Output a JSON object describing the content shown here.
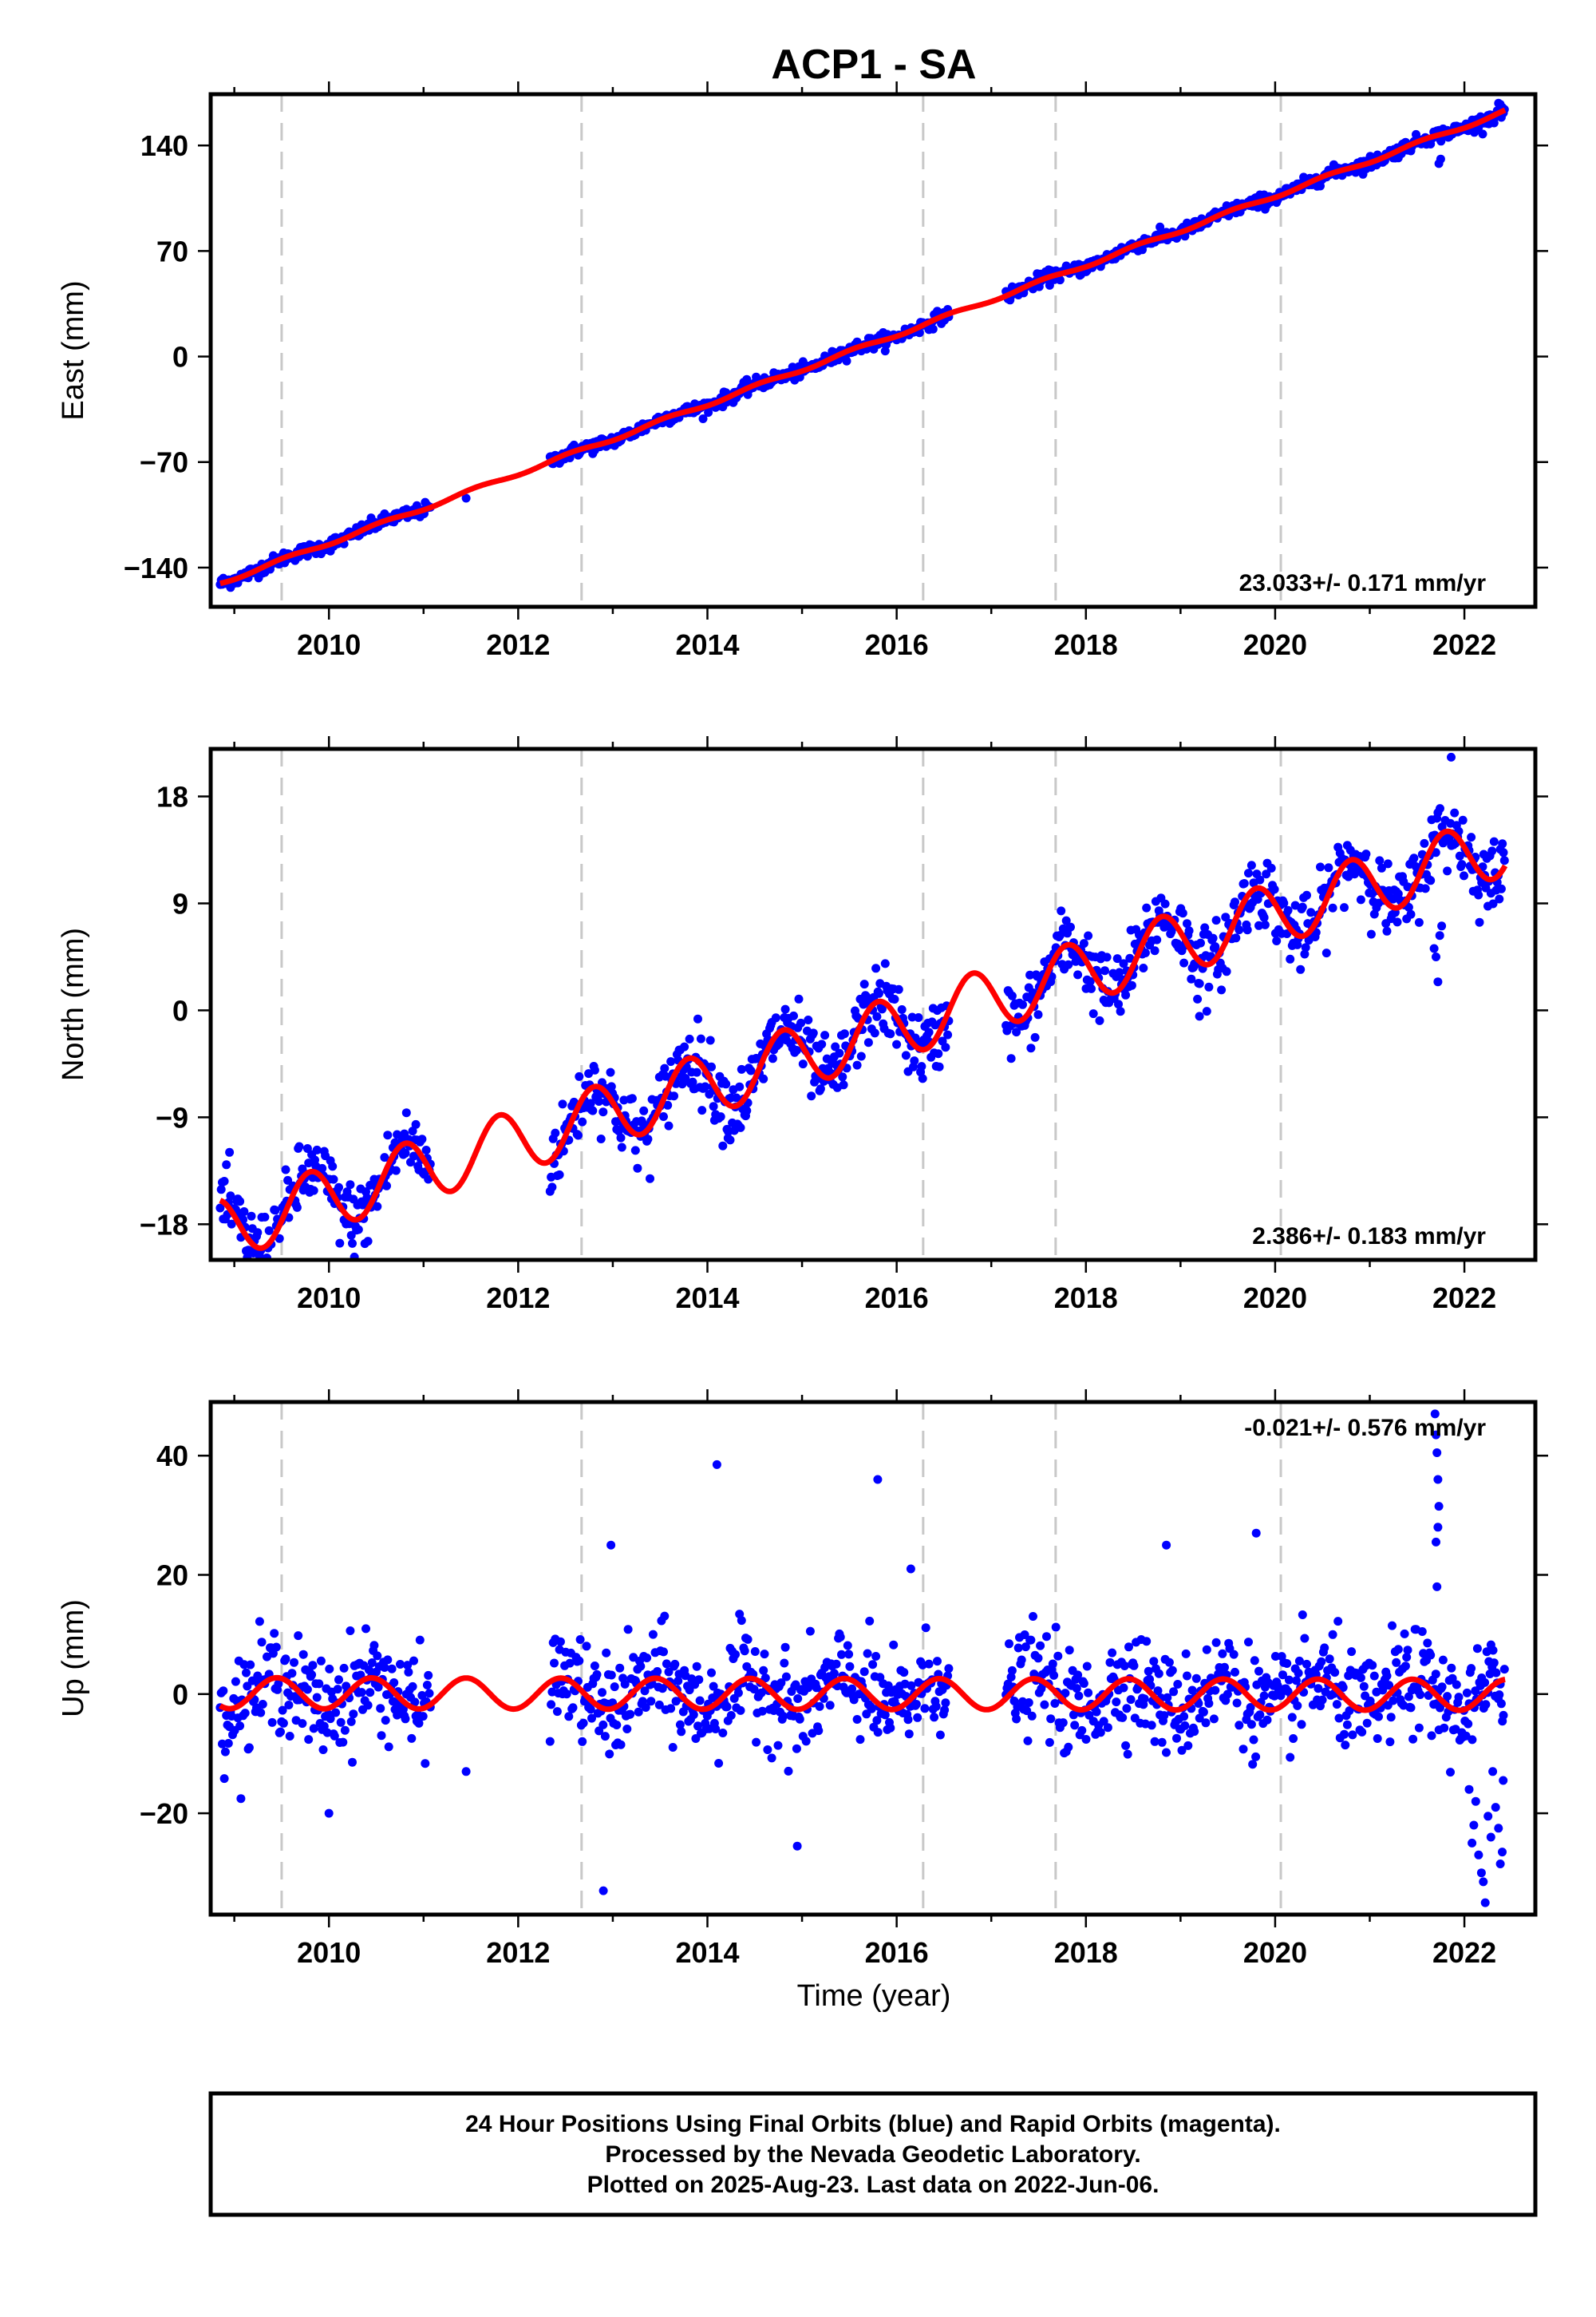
{
  "chart_data": {
    "type": "scatter",
    "title": "ACP1 - SA",
    "xlabel": "Time (year)",
    "xlim": [
      2008.75,
      2022.75
    ],
    "x_ticks": [
      2010,
      2012,
      2014,
      2016,
      2018,
      2020,
      2022
    ],
    "vertical_markers": [
      2009.5,
      2012.67,
      2016.28,
      2017.68,
      2020.06
    ],
    "colors": {
      "points": "#0000ff",
      "fit": "#ff0000",
      "markers": "#c8c8c8"
    },
    "data_range": {
      "start": 2008.85,
      "end": 2022.43
    },
    "gaps": [
      [
        2011.08,
        2012.33
      ],
      [
        2016.55,
        2017.15
      ]
    ],
    "panels": [
      {
        "name": "east",
        "ylabel": "East (mm)",
        "ylim": [
          -166,
          174
        ],
        "y_ticks": [
          -140,
          -70,
          0,
          70,
          140
        ],
        "rate_text": "23.033+/- 0.171 mm/yr",
        "fit": {
          "ref_year": 2016.0,
          "offset": 14.5,
          "rate": 23.033,
          "annual_amp": 1.2,
          "annual_phase": 0.3
        },
        "noise_sd": 2.2,
        "outliers": [
          {
            "x": 2021.73,
            "y": 128.0
          },
          {
            "x": 2021.75,
            "y": 131.0
          },
          {
            "x": 2011.45,
            "y": -94.0
          },
          {
            "x": 2022.36,
            "y": 168.0
          }
        ]
      },
      {
        "name": "north",
        "ylabel": "North (mm)",
        "ylim": [
          -21,
          22
        ],
        "y_ticks": [
          -18,
          -9,
          0,
          9,
          18
        ],
        "rate_text": "2.386+/- 0.183 mm/yr",
        "fit": {
          "ref_year": 2016.0,
          "offset": -1.4,
          "rate": 2.386,
          "annual_amp": 2.6,
          "annual_phase": 0.55
        },
        "noise_sd": 1.5,
        "outliers": [
          {
            "x": 2021.72,
            "y": 2.4
          },
          {
            "x": 2021.7,
            "y": 4.5
          },
          {
            "x": 2021.68,
            "y": 5.2
          },
          {
            "x": 2021.74,
            "y": 6.3
          },
          {
            "x": 2021.76,
            "y": 7.1
          },
          {
            "x": 2019.2,
            "y": -0.5
          },
          {
            "x": 2014.22,
            "y": -10.2
          },
          {
            "x": 2021.86,
            "y": 21.3
          }
        ]
      },
      {
        "name": "up",
        "ylabel": "Up (mm)",
        "ylim": [
          -37,
          49
        ],
        "y_ticks": [
          -20,
          0,
          20,
          40
        ],
        "rate_text": "-0.021+/- 0.576 mm/yr",
        "fit": {
          "ref_year": 2016.0,
          "offset": 0.0,
          "rate": -0.021,
          "annual_amp": 2.6,
          "annual_phase": 0.2
        },
        "noise_sd": 4.2,
        "outliers": [
          {
            "x": 2014.1,
            "y": 38.5
          },
          {
            "x": 2015.8,
            "y": 36.0
          },
          {
            "x": 2012.9,
            "y": -33.0
          },
          {
            "x": 2014.95,
            "y": -25.5
          },
          {
            "x": 2012.98,
            "y": 25.0
          },
          {
            "x": 2010.0,
            "y": -20.0
          },
          {
            "x": 2016.15,
            "y": 21.0
          },
          {
            "x": 2018.85,
            "y": 25.0
          },
          {
            "x": 2019.8,
            "y": 27.0
          },
          {
            "x": 2011.45,
            "y": -13.0
          },
          {
            "x": 2021.69,
            "y": 47.0
          },
          {
            "x": 2021.7,
            "y": 43.5
          },
          {
            "x": 2021.71,
            "y": 40.5
          },
          {
            "x": 2021.72,
            "y": 36.0
          },
          {
            "x": 2021.73,
            "y": 31.5
          },
          {
            "x": 2021.72,
            "y": 28.0
          },
          {
            "x": 2021.7,
            "y": 25.5
          },
          {
            "x": 2021.71,
            "y": 18.0
          },
          {
            "x": 2022.05,
            "y": -16.0
          },
          {
            "x": 2022.1,
            "y": -22.0
          },
          {
            "x": 2022.15,
            "y": -27.0
          },
          {
            "x": 2022.2,
            "y": -31.5
          },
          {
            "x": 2022.22,
            "y": -35.0
          },
          {
            "x": 2022.28,
            "y": -24.0
          },
          {
            "x": 2022.33,
            "y": -19.0
          },
          {
            "x": 2022.38,
            "y": -28.5
          },
          {
            "x": 2022.41,
            "y": -14.5
          },
          {
            "x": 2022.12,
            "y": -18.0
          },
          {
            "x": 2022.25,
            "y": -20.5
          },
          {
            "x": 2022.3,
            "y": -13.0
          },
          {
            "x": 2022.36,
            "y": -22.5
          },
          {
            "x": 2022.08,
            "y": -25.0
          },
          {
            "x": 2022.18,
            "y": -30.0
          },
          {
            "x": 2022.4,
            "y": -26.5
          }
        ]
      }
    ]
  },
  "footer": {
    "line1": "24 Hour Positions Using Final Orbits (blue) and Rapid Orbits (magenta).",
    "line2": "Processed by the Nevada Geodetic Laboratory.",
    "line3": "Plotted on 2025-Aug-23. Last data on 2022-Jun-06."
  }
}
